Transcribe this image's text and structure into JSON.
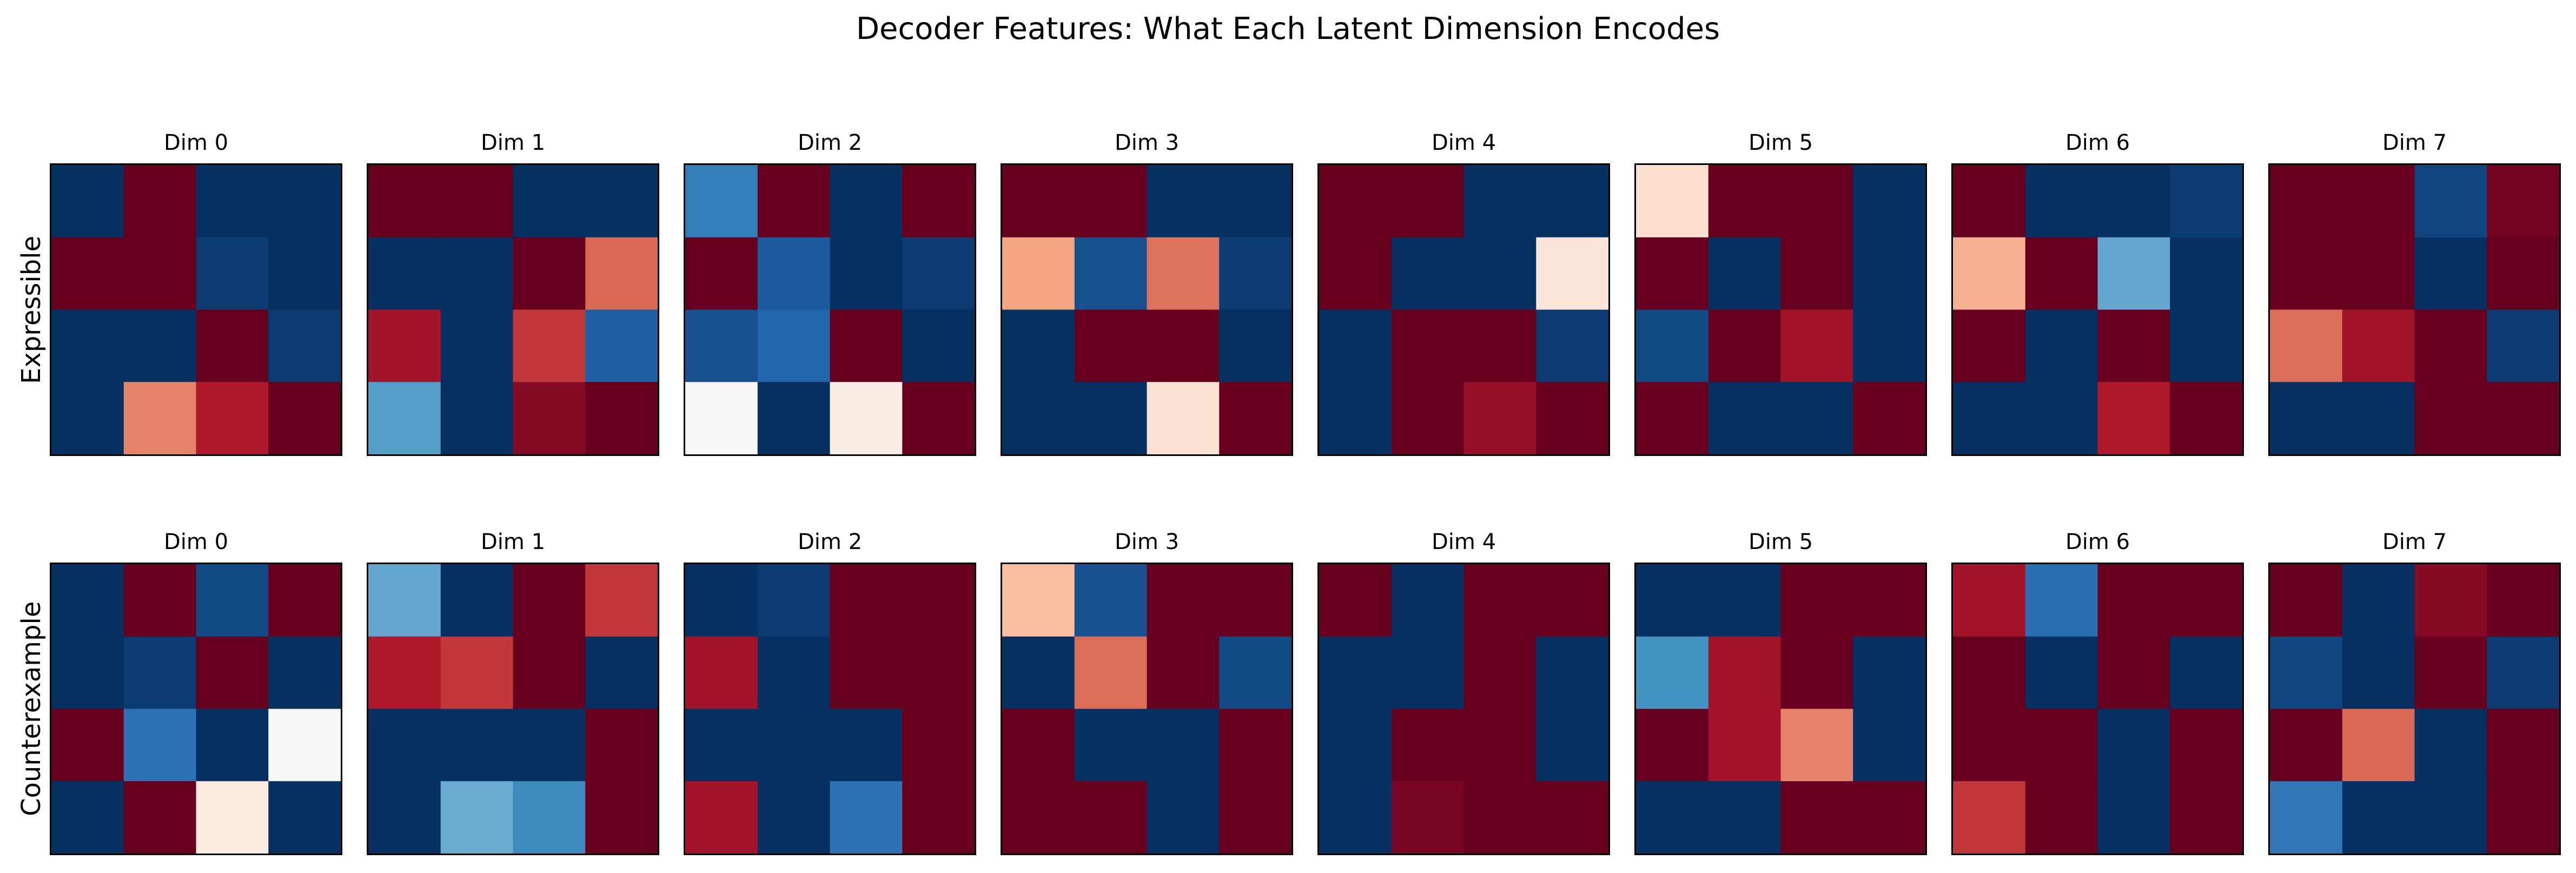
{
  "figure": {
    "title": "Decoder Features: What Each Latent Dimension Encodes"
  },
  "chart_data": {
    "type": "heatmap",
    "title": "Decoder Features: What Each Latent Dimension Encodes",
    "colormap": "RdBu_r",
    "value_range": [
      -1,
      1
    ],
    "rows": [
      {
        "label": "Expressible",
        "panels": [
          {
            "title": "Dim 0",
            "grid": [
              [
                -1.0,
                1.0,
                -1.0,
                -1.0
              ],
              [
                1.0,
                1.0,
                -0.95,
                -1.0
              ],
              [
                -1.0,
                -1.0,
                1.0,
                -0.95
              ],
              [
                -1.0,
                0.62,
                0.88,
                1.0
              ]
            ]
          },
          {
            "title": "Dim 1",
            "grid": [
              [
                1.0,
                1.0,
                -1.0,
                -1.0
              ],
              [
                -1.0,
                -1.0,
                1.0,
                0.72
              ],
              [
                0.9,
                -1.0,
                0.82,
                -0.78
              ],
              [
                -0.45,
                -1.0,
                0.95,
                1.0
              ]
            ]
          },
          {
            "title": "Dim 2",
            "grid": [
              [
                -0.62,
                1.0,
                -1.0,
                1.0
              ],
              [
                1.0,
                -0.8,
                -1.0,
                -0.95
              ],
              [
                -0.85,
                -0.75,
                1.0,
                -1.0
              ],
              [
                0.0,
                -1.0,
                0.1,
                1.0
              ]
            ]
          },
          {
            "title": "Dim 3",
            "grid": [
              [
                1.0,
                1.0,
                -1.0,
                -1.0
              ],
              [
                0.5,
                -0.85,
                0.68,
                -0.95
              ],
              [
                -1.0,
                1.0,
                1.0,
                -1.0
              ],
              [
                -1.0,
                -1.0,
                0.18,
                1.0
              ]
            ]
          },
          {
            "title": "Dim 4",
            "grid": [
              [
                1.0,
                1.0,
                -1.0,
                -1.0
              ],
              [
                1.0,
                -1.0,
                -1.0,
                0.16
              ],
              [
                -1.0,
                1.0,
                1.0,
                -0.95
              ],
              [
                -1.0,
                1.0,
                0.92,
                1.0
              ]
            ]
          },
          {
            "title": "Dim 5",
            "grid": [
              [
                0.2,
                1.0,
                1.0,
                -1.0
              ],
              [
                1.0,
                -1.0,
                1.0,
                -1.0
              ],
              [
                -0.88,
                1.0,
                0.9,
                -1.0
              ],
              [
                1.0,
                -1.0,
                -1.0,
                1.0
              ]
            ]
          },
          {
            "title": "Dim 6",
            "grid": [
              [
                1.0,
                -1.0,
                -1.0,
                -0.95
              ],
              [
                0.45,
                1.0,
                -0.4,
                -1.0
              ],
              [
                1.0,
                -1.0,
                1.0,
                -1.0
              ],
              [
                -1.0,
                -1.0,
                0.88,
                1.0
              ]
            ]
          },
          {
            "title": "Dim 7",
            "grid": [
              [
                1.0,
                1.0,
                -0.9,
                0.98
              ],
              [
                1.0,
                1.0,
                -1.0,
                1.0
              ],
              [
                0.7,
                0.9,
                1.0,
                -0.95
              ],
              [
                -1.0,
                -1.0,
                1.0,
                1.0
              ]
            ]
          }
        ]
      },
      {
        "label": "Counterexample",
        "panels": [
          {
            "title": "Dim 0",
            "grid": [
              [
                -1.0,
                1.0,
                -0.88,
                1.0
              ],
              [
                -1.0,
                -0.95,
                1.0,
                -1.0
              ],
              [
                1.0,
                -0.68,
                -1.0,
                0.0
              ],
              [
                -1.0,
                1.0,
                0.12,
                -1.0
              ]
            ]
          },
          {
            "title": "Dim 1",
            "grid": [
              [
                -0.4,
                -1.0,
                1.0,
                0.82
              ],
              [
                0.88,
                0.82,
                1.0,
                -1.0
              ],
              [
                -1.0,
                -1.0,
                -1.0,
                1.0
              ],
              [
                -1.0,
                -0.38,
                -0.55,
                1.0
              ]
            ]
          },
          {
            "title": "Dim 2",
            "grid": [
              [
                -1.0,
                -0.95,
                1.0,
                1.0
              ],
              [
                0.9,
                -1.0,
                1.0,
                1.0
              ],
              [
                -1.0,
                -1.0,
                -1.0,
                1.0
              ],
              [
                0.9,
                -1.0,
                -0.68,
                1.0
              ]
            ]
          },
          {
            "title": "Dim 3",
            "grid": [
              [
                0.38,
                -0.85,
                1.0,
                1.0
              ],
              [
                -1.0,
                0.7,
                1.0,
                -0.88
              ],
              [
                1.0,
                -1.0,
                -1.0,
                1.0
              ],
              [
                1.0,
                1.0,
                -1.0,
                1.0
              ]
            ]
          },
          {
            "title": "Dim 4",
            "grid": [
              [
                1.0,
                -1.0,
                1.0,
                1.0
              ],
              [
                -1.0,
                -1.0,
                1.0,
                -1.0
              ],
              [
                -1.0,
                1.0,
                1.0,
                -1.0
              ],
              [
                -1.0,
                0.97,
                1.0,
                1.0
              ]
            ]
          },
          {
            "title": "Dim 5",
            "grid": [
              [
                -1.0,
                -1.0,
                1.0,
                1.0
              ],
              [
                -0.5,
                0.9,
                1.0,
                -1.0
              ],
              [
                1.0,
                0.9,
                0.62,
                -1.0
              ],
              [
                -1.0,
                -1.0,
                1.0,
                1.0
              ]
            ]
          },
          {
            "title": "Dim 6",
            "grid": [
              [
                0.9,
                -0.7,
                1.0,
                1.0
              ],
              [
                1.0,
                -1.0,
                1.0,
                -1.0
              ],
              [
                1.0,
                1.0,
                -1.0,
                1.0
              ],
              [
                0.82,
                1.0,
                -1.0,
                1.0
              ]
            ]
          },
          {
            "title": "Dim 7",
            "grid": [
              [
                1.0,
                -1.0,
                0.95,
                1.0
              ],
              [
                -0.9,
                -1.0,
                1.0,
                -0.95
              ],
              [
                1.0,
                0.72,
                -1.0,
                1.0
              ],
              [
                -0.65,
                -1.0,
                -1.0,
                1.0
              ]
            ]
          }
        ]
      }
    ]
  }
}
